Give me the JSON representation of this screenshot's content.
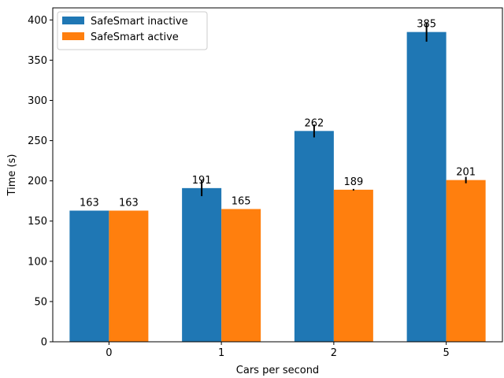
{
  "chart_data": {
    "type": "bar",
    "xlabel": "Cars per second",
    "ylabel": "Time (s)",
    "categories": [
      "0",
      "1",
      "2",
      "5"
    ],
    "ylim": [
      0,
      415
    ],
    "yticks": [
      0,
      50,
      100,
      150,
      200,
      250,
      300,
      350,
      400
    ],
    "grid": false,
    "legend_position": "top-left",
    "series": [
      {
        "name": "SafeSmart inactive",
        "color": "#1f77b4",
        "values": [
          163,
          191,
          262,
          385
        ],
        "error": [
          0,
          10,
          8,
          12
        ],
        "labels": [
          "163",
          "191",
          "262",
          "385"
        ]
      },
      {
        "name": "SafeSmart active",
        "color": "#ff7f0e",
        "values": [
          163,
          165,
          189,
          201
        ],
        "error": [
          0,
          0,
          1,
          4
        ],
        "labels": [
          "163",
          "165",
          "189",
          "201"
        ]
      }
    ]
  }
}
